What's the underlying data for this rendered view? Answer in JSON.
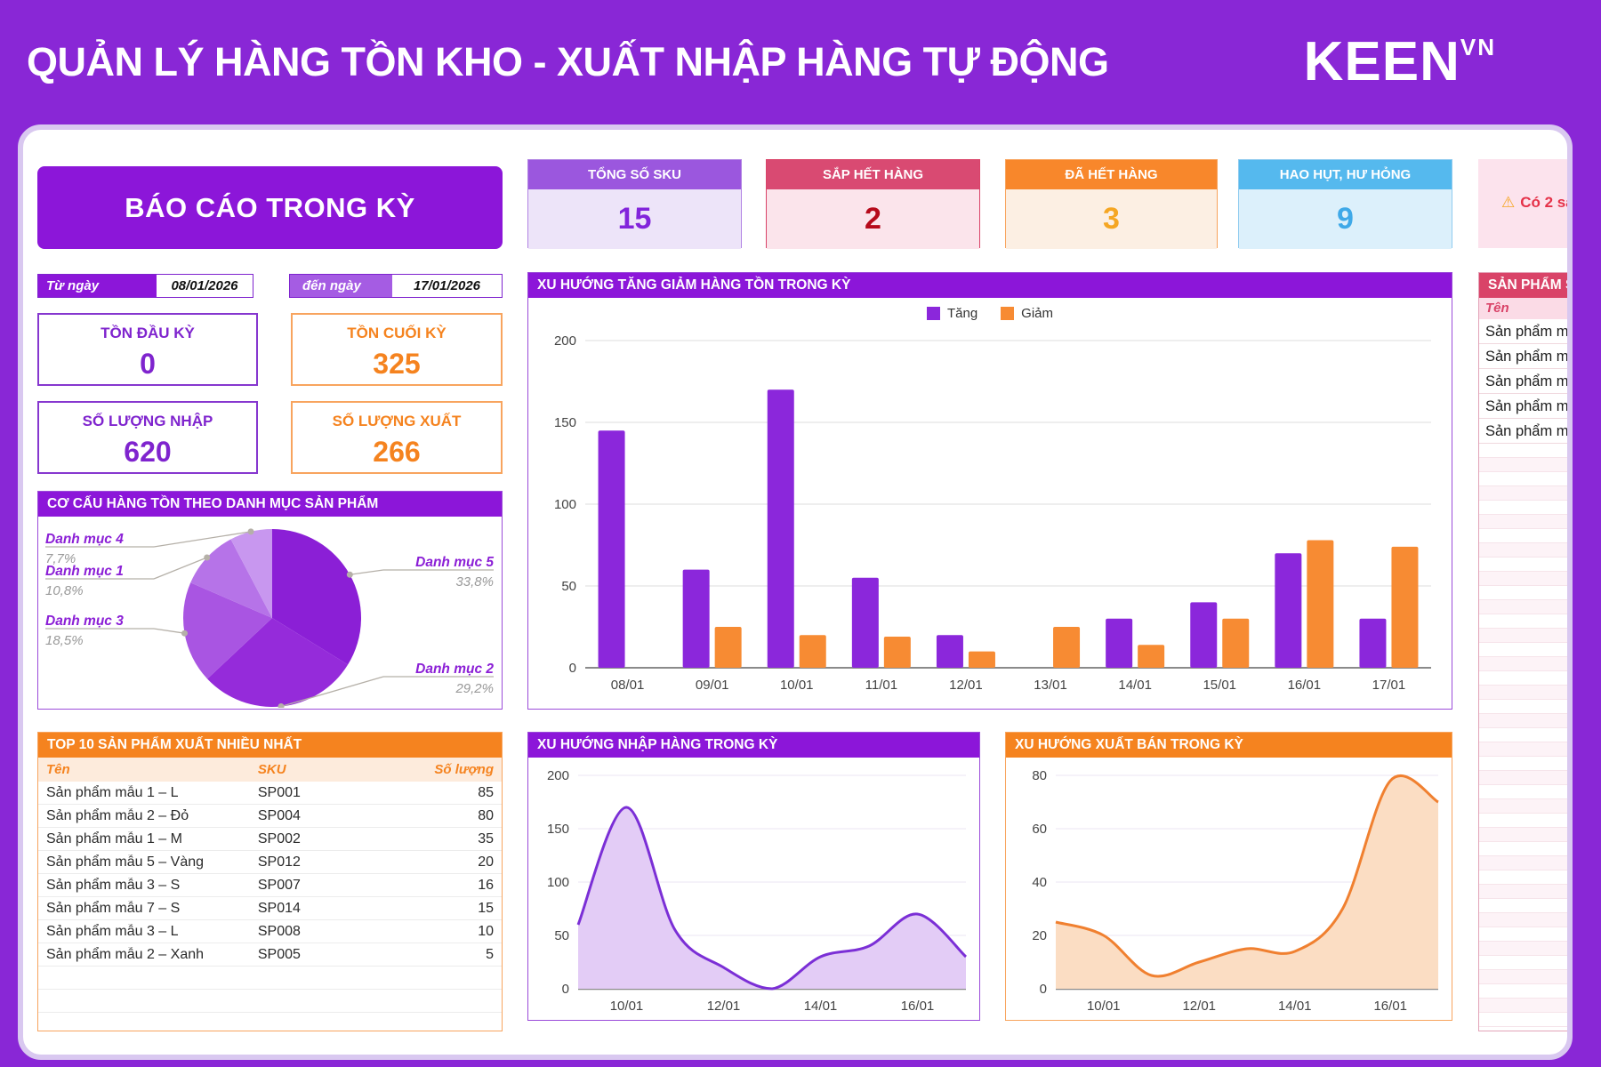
{
  "header": {
    "title": "QUẢN LÝ HÀNG TỒN KHO - XUẤT NHẬP HÀNG TỰ ĐỘNG",
    "brand": "KEEN",
    "brand_sup": "VN"
  },
  "report": {
    "title": "BÁO CÁO TRONG KỲ",
    "date_from": {
      "label": "Từ ngày",
      "value": "08/01/2026"
    },
    "date_to": {
      "label": "đến ngày",
      "value": "17/01/2026"
    },
    "stats": [
      {
        "label": "TỒN ĐẦU KỲ",
        "value": "0",
        "theme": "purple"
      },
      {
        "label": "TỒN CUỐI KỲ",
        "value": "325",
        "theme": "orange"
      },
      {
        "label": "SỐ LƯỢNG NHẬP",
        "value": "620",
        "theme": "purple"
      },
      {
        "label": "SỐ LƯỢNG XUẤT",
        "value": "266",
        "theme": "orange"
      }
    ]
  },
  "kpis": [
    {
      "label": "TỔNG SỐ SKU",
      "value": "15"
    },
    {
      "label": "SẮP HẾT HÀNG",
      "value": "2"
    },
    {
      "label": "ĐÃ HẾT HÀNG",
      "value": "3"
    },
    {
      "label": "HAO HỤT, HƯ HỎNG",
      "value": "9"
    }
  ],
  "top10": {
    "title": "TOP 10 SẢN PHẨM XUẤT NHIỀU NHẤT",
    "columns": [
      "Tên",
      "SKU",
      "Số lượng"
    ],
    "rows": [
      [
        "Sản phẩm mẫu 1 – L",
        "SP001",
        "85"
      ],
      [
        "Sản phẩm mẫu 2 – Đỏ",
        "SP004",
        "80"
      ],
      [
        "Sản phẩm mẫu 1 – M",
        "SP002",
        "35"
      ],
      [
        "Sản phẩm mẫu 5 – Vàng",
        "SP012",
        "20"
      ],
      [
        "Sản phẩm mẫu 3 – S",
        "SP007",
        "16"
      ],
      [
        "Sản phẩm mẫu 7 – S",
        "SP014",
        "15"
      ],
      [
        "Sản phẩm mẫu 3 – L",
        "SP008",
        "10"
      ],
      [
        "Sản phẩm mẫu 2 – Xanh",
        "SP005",
        "5"
      ]
    ],
    "empty_rows": 2
  },
  "right_panel": {
    "warning_icon": "⚠",
    "warning": "Có 2 sả",
    "table_title": "SẢN PHẨM S",
    "col_header": "Tên",
    "rows": [
      "Sản phẩm mẫ",
      "Sản phẩm mẫ",
      "Sản phẩm mẫ",
      "Sản phẩm mẫ",
      "Sản phẩm mẫ"
    ],
    "empty_rows": 41
  },
  "chart_data": [
    {
      "type": "pie",
      "title": "CƠ CẤU HÀNG TỒN THEO DANH MỤC SẢN PHẨM",
      "labels": [
        "Danh mục 5",
        "Danh mục 2",
        "Danh mục 3",
        "Danh mục 1",
        "Danh mục 4"
      ],
      "values": [
        33.8,
        29.2,
        18.5,
        10.8,
        7.7
      ],
      "pct_labels": [
        "33,8%",
        "29,2%",
        "18,5%",
        "10,8%",
        "7,7%"
      ],
      "colors": [
        "#8B1FD6",
        "#952BDA",
        "#A955E2",
        "#B673E8",
        "#C897EF"
      ],
      "legend_position": "callout-labels"
    },
    {
      "type": "bar",
      "title": "XU HƯỚNG TĂNG GIẢM HÀNG TỒN TRONG KỲ",
      "categories": [
        "08/01",
        "09/01",
        "10/01",
        "11/01",
        "12/01",
        "13/01",
        "14/01",
        "15/01",
        "16/01",
        "17/01"
      ],
      "series": [
        {
          "name": "Tăng",
          "color": "#8B27DB",
          "values": [
            145,
            60,
            170,
            55,
            20,
            0,
            30,
            40,
            70,
            30
          ]
        },
        {
          "name": "Giảm",
          "color": "#F78B33",
          "values": [
            0,
            25,
            20,
            19,
            10,
            25,
            14,
            30,
            78,
            74
          ]
        }
      ],
      "ylim": [
        0,
        200
      ],
      "yticks": [
        0,
        50,
        100,
        150,
        200
      ],
      "grid": true,
      "legend_position": "top-center"
    },
    {
      "type": "area",
      "title": "XU HƯỚNG NHẬP HÀNG TRONG KỲ",
      "x": [
        "09/01",
        "10/01",
        "11/01",
        "12/01",
        "13/01",
        "14/01",
        "15/01",
        "16/01",
        "17/01"
      ],
      "values": [
        60,
        170,
        55,
        20,
        0,
        30,
        40,
        70,
        30
      ],
      "xticks": [
        "10/01",
        "12/01",
        "14/01",
        "16/01"
      ],
      "xtick_indices": [
        1,
        3,
        5,
        7
      ],
      "ylim": [
        0,
        200
      ],
      "yticks": [
        0,
        50,
        100,
        150,
        200
      ],
      "line_color": "#7B2FD6",
      "fill_color": "#E3CCF6",
      "grid": true
    },
    {
      "type": "area",
      "title": "XU HƯỚNG XUẤT BÁN TRONG KỲ",
      "x": [
        "09/01",
        "10/01",
        "11/01",
        "12/01",
        "13/01",
        "14/01",
        "15/01",
        "16/01",
        "17/01"
      ],
      "values": [
        25,
        20,
        5,
        10,
        15,
        14,
        30,
        78,
        70
      ],
      "xticks": [
        "10/01",
        "12/01",
        "14/01",
        "16/01"
      ],
      "xtick_indices": [
        1,
        3,
        5,
        7
      ],
      "ylim": [
        0,
        80
      ],
      "yticks": [
        0,
        20,
        40,
        60,
        80
      ],
      "line_color": "#F08030",
      "fill_color": "#FBDDC3",
      "grid": true
    }
  ]
}
